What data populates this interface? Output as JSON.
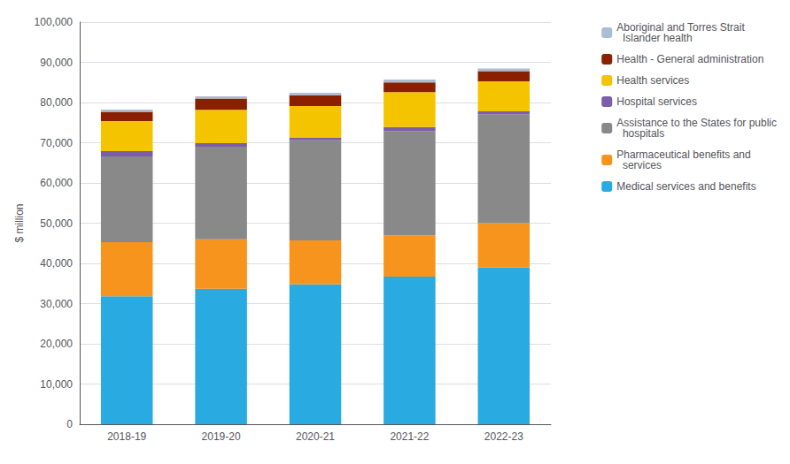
{
  "chart_data": {
    "type": "bar",
    "stacked": true,
    "categories": [
      "2018-19",
      "2019-20",
      "2020-21",
      "2021-22",
      "2022-23"
    ],
    "series": [
      {
        "name": "Medical services and benefits",
        "color": "#29ABE2",
        "values": [
          31800,
          33700,
          34800,
          36700,
          39000
        ]
      },
      {
        "name": "Pharmaceutical benefits and\n  services",
        "color": "#F7941D",
        "values": [
          13500,
          12300,
          10900,
          10300,
          11000
        ]
      },
      {
        "name": "Assistance to the States for public\n  hospitals",
        "color": "#898989",
        "values": [
          21300,
          23000,
          24900,
          25900,
          27100
        ]
      },
      {
        "name": "Hospital services",
        "color": "#7B5EA7",
        "values": [
          1300,
          900,
          700,
          1000,
          700
        ]
      },
      {
        "name": "Health services",
        "color": "#F5C400",
        "values": [
          7500,
          8300,
          7800,
          8700,
          7500
        ]
      },
      {
        "name": "Health - General administration",
        "color": "#8B2000",
        "values": [
          2300,
          2800,
          2700,
          2400,
          2500
        ]
      },
      {
        "name": "Aboriginal and Torres Strait\n  Islander health",
        "color": "#AABDD4",
        "values": [
          550,
          550,
          600,
          700,
          650
        ]
      }
    ],
    "ylabel": "$ million",
    "ylim": [
      0,
      100000
    ],
    "yticks": [
      0,
      {
        "value": 10000,
        "label": "10,000"
      },
      {
        "value": 20000,
        "label": "20,000"
      },
      {
        "value": 30000,
        "label": "30,000"
      },
      {
        "value": 40000,
        "label": "40,000"
      },
      {
        "value": 50000,
        "label": "50,000"
      },
      {
        "value": 60000,
        "label": "60,000"
      },
      {
        "value": 70000,
        "label": "70,000"
      },
      {
        "value": 80000,
        "label": "80,000"
      },
      {
        "value": 90000,
        "label": "90,000"
      },
      {
        "value": 100000,
        "label": "100,000"
      }
    ],
    "grid": true,
    "legend": "right"
  }
}
